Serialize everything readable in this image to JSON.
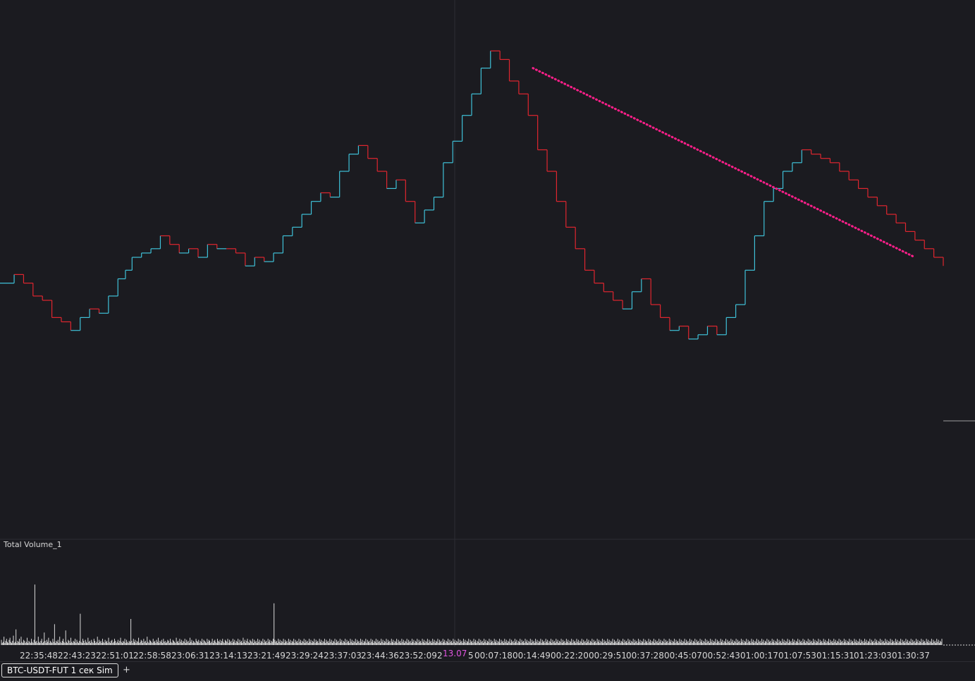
{
  "tabs": [
    {
      "label": "BTC-USDT-FUT 1 сек Sim"
    }
  ],
  "add_tab_label": "+",
  "cursor": {
    "label": "13.07"
  },
  "colors": {
    "background": "#1b1b20",
    "up": "#3fc1d8",
    "down": "#e0262f",
    "trendline": "#ff1f8a",
    "trendline_alt": "#29b6e6",
    "volume": "#d9d9d9",
    "cursor_label": "#e055e0"
  },
  "chart_data": [
    {
      "type": "line",
      "style": "step",
      "title": "",
      "x_tick_labels": [
        "22:35:48",
        "22:43:23",
        "22:51:01",
        "22:58:58",
        "23:06:31",
        "23:14:13",
        "23:21:49",
        "23:29:24",
        "23:37:03",
        "23:44:36",
        "23:52:09",
        "2",
        "5",
        "00:07:18",
        "00:14:49",
        "00:22:20",
        "00:29:51",
        "00:37:28",
        "00:45:07",
        "00:52:43",
        "01:00:17",
        "01:07:53",
        "01:15:31",
        "01:23:03",
        "01:30:37"
      ],
      "x_range": [
        0,
        100
      ],
      "y_range": [
        0,
        100
      ],
      "grid": false,
      "series": [
        {
          "x": [
            0,
            1.5,
            2.5,
            3.5,
            4.5,
            5.5,
            6.5,
            7.5,
            8.5,
            9.5,
            10.5,
            11.5,
            12.5,
            13.3,
            14,
            15,
            16,
            17,
            18,
            19,
            20,
            21,
            22,
            23,
            24,
            25,
            26,
            27,
            28,
            29,
            30,
            31,
            32,
            33,
            34,
            35,
            36,
            37,
            38,
            39,
            40,
            41,
            42,
            43,
            44,
            45,
            46,
            47,
            48,
            49,
            50,
            51,
            52,
            53,
            54,
            55,
            56,
            57,
            58,
            59,
            60,
            61,
            62,
            63,
            64,
            65,
            66,
            67,
            68,
            69,
            70,
            71,
            72,
            73,
            74,
            75,
            76,
            77,
            78,
            79,
            80,
            81,
            82,
            83,
            84,
            85,
            86,
            87,
            88,
            89,
            90,
            91,
            92,
            93,
            94,
            95,
            96,
            97,
            98,
            99,
            100
          ],
          "y": [
            44,
            46,
            44,
            41,
            40,
            36,
            35,
            33,
            36,
            38,
            37,
            41,
            45,
            47,
            50,
            51,
            52,
            55,
            53,
            51,
            52,
            50,
            53,
            52,
            52,
            51,
            48,
            50,
            49,
            51,
            55,
            57,
            60,
            63,
            65,
            64,
            70,
            74,
            76,
            73,
            70,
            66,
            68,
            63,
            58,
            61,
            64,
            72,
            77,
            83,
            88,
            94,
            98,
            96,
            91,
            88,
            83,
            75,
            70,
            63,
            57,
            52,
            47,
            44,
            42,
            40,
            38,
            42,
            45,
            39,
            36,
            33,
            34,
            31,
            32,
            34,
            32,
            36,
            39,
            47,
            55,
            63,
            66,
            70,
            72,
            75,
            74,
            73,
            72,
            70,
            68,
            66,
            64,
            62,
            60,
            58,
            56,
            54,
            52,
            50,
            48
          ],
          "markers": "none"
        }
      ],
      "annotations": [
        {
          "type": "dotted-trendline",
          "from": [
            56.5,
            94
          ],
          "to": [
            97,
            50
          ]
        }
      ]
    },
    {
      "type": "bar",
      "title": "Total Volume_1",
      "grid": false,
      "y_range": [
        0,
        100
      ],
      "values": [
        5,
        2,
        3,
        8,
        2,
        4,
        6,
        3,
        2,
        5,
        7,
        3,
        2,
        4,
        9,
        2,
        3,
        15,
        2,
        4,
        3,
        6,
        2,
        8,
        3,
        2,
        5,
        4,
        2,
        3,
        7,
        2,
        4,
        3,
        2,
        6,
        3,
        2,
        5,
        58,
        3,
        4,
        2,
        8,
        3,
        2,
        4,
        6,
        2,
        3,
        12,
        4,
        2,
        5,
        3,
        7,
        2,
        4,
        3,
        2,
        6,
        3,
        20,
        2,
        4,
        3,
        5,
        2,
        8,
        3,
        2,
        4,
        6,
        3,
        2,
        14,
        3,
        2,
        5,
        4,
        2,
        7,
        3,
        2,
        4,
        3,
        6,
        2,
        5,
        3,
        2,
        4,
        30,
        3,
        2,
        6,
        4,
        2,
        5,
        3,
        2,
        7,
        3,
        4,
        2,
        5,
        3,
        2,
        6,
        4,
        2,
        3,
        8,
        2,
        5,
        3,
        4,
        2,
        6,
        3,
        2,
        5,
        3,
        4,
        2,
        7,
        3,
        2,
        4,
        5,
        2,
        3,
        6,
        4,
        2,
        3,
        5,
        2,
        4,
        7,
        3,
        2,
        4,
        3,
        6,
        2,
        5,
        3,
        2,
        4,
        3,
        25,
        4,
        2,
        6,
        3,
        5,
        2,
        4,
        3,
        7,
        2,
        3,
        5,
        4,
        2,
        6,
        3,
        4,
        2,
        8,
        3,
        2,
        5,
        4,
        3,
        2,
        6,
        3,
        4,
        2,
        5,
        3,
        7,
        2,
        4,
        3,
        5,
        2,
        6,
        3,
        4,
        2,
        3,
        5,
        4,
        2,
        6,
        3,
        2,
        5,
        4,
        3,
        2,
        7,
        3,
        4,
        2,
        6,
        3,
        5,
        2,
        4,
        3,
        6,
        2,
        5,
        3,
        4,
        2,
        7,
        3,
        5,
        2,
        4,
        3,
        2,
        6,
        4,
        3,
        5,
        2,
        4,
        3,
        6,
        2,
        5,
        4,
        3,
        2,
        6,
        3,
        5,
        4,
        2,
        3,
        6,
        2,
        4,
        5,
        3,
        2,
        6,
        4,
        3,
        5,
        2,
        4,
        6,
        3,
        2,
        5,
        4,
        3,
        6,
        2,
        5,
        3,
        4,
        2,
        6,
        3,
        5,
        2,
        4,
        3,
        6,
        2,
        5,
        3,
        4,
        2,
        7,
        3,
        5,
        2,
        4,
        6,
        3,
        2,
        5,
        4,
        3,
        6,
        2,
        5,
        3,
        4,
        2,
        6,
        3,
        5,
        2,
        4,
        3,
        6,
        2,
        5,
        3,
        4,
        2,
        6,
        3,
        5,
        2,
        4,
        3,
        6,
        40,
        5,
        3,
        4,
        2,
        6,
        3,
        5,
        2,
        4,
        3,
        6,
        2,
        5,
        3,
        4,
        2,
        6,
        3,
        5,
        2,
        4,
        3,
        6,
        2,
        5,
        3,
        4,
        2,
        6,
        3,
        5,
        2,
        4,
        3,
        6,
        2,
        5,
        3,
        4,
        2,
        6,
        3,
        5,
        2,
        4,
        3,
        6,
        2,
        5,
        3,
        4,
        2,
        6,
        3,
        5,
        2,
        4,
        3,
        6,
        2,
        5,
        3,
        4,
        2,
        6,
        3,
        5,
        2,
        4,
        3,
        6,
        2,
        5,
        3,
        4,
        2,
        6,
        3,
        5,
        2,
        4,
        3,
        6,
        2,
        5,
        3,
        4,
        2,
        6,
        3,
        5,
        2,
        4,
        3,
        6,
        2,
        5,
        3,
        4,
        2,
        6,
        3,
        5,
        2,
        4,
        3,
        6,
        2,
        5,
        3,
        4,
        2,
        6,
        3,
        5,
        2,
        4,
        3,
        6,
        2,
        5,
        3,
        4,
        2,
        6,
        3,
        5,
        2,
        4,
        3,
        6,
        2,
        5,
        3,
        4,
        2,
        6,
        3,
        5,
        2,
        4,
        3,
        6,
        2,
        5,
        3,
        4,
        2,
        6,
        3,
        5,
        2,
        4,
        3,
        6,
        2,
        5,
        3,
        4,
        2,
        6,
        3,
        5,
        2,
        4,
        3,
        6,
        2,
        5,
        3,
        4,
        2,
        6,
        3,
        5,
        2,
        4,
        3,
        6,
        2,
        5,
        3,
        4,
        2,
        6,
        3,
        5,
        2,
        4,
        3,
        6,
        2,
        5,
        3,
        4,
        2,
        6,
        3,
        5,
        2,
        4,
        3,
        6,
        2,
        5,
        3,
        4,
        2,
        6,
        3,
        5,
        2,
        4,
        3,
        6,
        2,
        5,
        3,
        4,
        2,
        6,
        3,
        5,
        2,
        4,
        3,
        6,
        2,
        5,
        3,
        4,
        2,
        6,
        3,
        5,
        2,
        4,
        3,
        6,
        2,
        5,
        3,
        4,
        2,
        6,
        3,
        5,
        2,
        4,
        3,
        6,
        2,
        5,
        3,
        4,
        2,
        6,
        3,
        5,
        2,
        4,
        3,
        6,
        2,
        5,
        3,
        4,
        2,
        6,
        3,
        5,
        2,
        4,
        3,
        6,
        2,
        5,
        3,
        4,
        2,
        6,
        3,
        5,
        2,
        4,
        3,
        6,
        2,
        5,
        3,
        4,
        2,
        6,
        3,
        5,
        2,
        4,
        3,
        6,
        2,
        5,
        3,
        4,
        2,
        6,
        3,
        5,
        2,
        4,
        3,
        6,
        2,
        5,
        3,
        4,
        2,
        6,
        3,
        5,
        2,
        4,
        3,
        6,
        2,
        5,
        3,
        4,
        2,
        6,
        3,
        5,
        2,
        4,
        3,
        6,
        2,
        5,
        3,
        4,
        2,
        6,
        3,
        5,
        2,
        4,
        3,
        6,
        2,
        5,
        3,
        4,
        2,
        6,
        3,
        5,
        2,
        4,
        3,
        6,
        2,
        5,
        3,
        4,
        2,
        6,
        3,
        5,
        2,
        4,
        3,
        6,
        2,
        5,
        3,
        4,
        2,
        6,
        3,
        5,
        2,
        4,
        3,
        6,
        2,
        5,
        3,
        4,
        2,
        6,
        3,
        5,
        2,
        4,
        3,
        6,
        2,
        5,
        3,
        4,
        2,
        6,
        3,
        5,
        2,
        4,
        3,
        6,
        2,
        5,
        3,
        4,
        2,
        6,
        3,
        5,
        2,
        4,
        3,
        6,
        2,
        5,
        3,
        4,
        2,
        6,
        3,
        5,
        2,
        4,
        3,
        6,
        2,
        5,
        3,
        4,
        2,
        6,
        3,
        5,
        2,
        4,
        3,
        6,
        2,
        5,
        3,
        4,
        2,
        6,
        3,
        5,
        2,
        4,
        3,
        6,
        2,
        5,
        3,
        4,
        2,
        6,
        3,
        5,
        2,
        4,
        3,
        6,
        2,
        5,
        3,
        4,
        2,
        6,
        3,
        5,
        2,
        4,
        3,
        6,
        2,
        5,
        3,
        4,
        2,
        6,
        3,
        5,
        2,
        4,
        3,
        6,
        2,
        5,
        3,
        4,
        2,
        6,
        3,
        5,
        2,
        4,
        3,
        6,
        2,
        5,
        3,
        4,
        2,
        6,
        3,
        5,
        2,
        4,
        3,
        6,
        2,
        5,
        3,
        4,
        2,
        6,
        3,
        5,
        2,
        4,
        3,
        6,
        2,
        5,
        3,
        4,
        2,
        6,
        3,
        5,
        2,
        4,
        3,
        6,
        2,
        5,
        3,
        4,
        2,
        6,
        3,
        5,
        2,
        4,
        3,
        6,
        2,
        5,
        3,
        4,
        2,
        6,
        3,
        5,
        2,
        4,
        3,
        6,
        2,
        5,
        3,
        4,
        2,
        6,
        3,
        5,
        2,
        4,
        3,
        6,
        2,
        5,
        3,
        4,
        2,
        6,
        3,
        5,
        2,
        4,
        3,
        6,
        2,
        5,
        3,
        4,
        2,
        6,
        3,
        5,
        2,
        4,
        3,
        6,
        2,
        5,
        3,
        4,
        2,
        6,
        3,
        5,
        2,
        4,
        3,
        6,
        2,
        5,
        3,
        4,
        2,
        6,
        3,
        5,
        2,
        4,
        3,
        6,
        2,
        5,
        3,
        4,
        2,
        6,
        3,
        5,
        2,
        4,
        3,
        6,
        2,
        5,
        3,
        4,
        2,
        6,
        3,
        5,
        2,
        4,
        3,
        6,
        2,
        5,
        3,
        4,
        2,
        6,
        3,
        5,
        2,
        4,
        3,
        6,
        2,
        5,
        3,
        4,
        2,
        6,
        3,
        5,
        2,
        4,
        3,
        6,
        2,
        5,
        3,
        4,
        2,
        6,
        3,
        5,
        2,
        4,
        3,
        6,
        2,
        5,
        3,
        4,
        2,
        6,
        3,
        5,
        2,
        4,
        3,
        6,
        2,
        5,
        3,
        4,
        2,
        6,
        3,
        5,
        2,
        4,
        3,
        6,
        2,
        5,
        3,
        4,
        2,
        6,
        3,
        5,
        2,
        4,
        3,
        6,
        2,
        5,
        3,
        4,
        2,
        6,
        3,
        5,
        2,
        4,
        3,
        6,
        2,
        5,
        3,
        4,
        2,
        6,
        3,
        5,
        2,
        4,
        3,
        6,
        2,
        5,
        3,
        4,
        2,
        6,
        3,
        5,
        2,
        4,
        3,
        6,
        2,
        5,
        3,
        4,
        2,
        6,
        3,
        5,
        2,
        4,
        3,
        6,
        2,
        5,
        3,
        4,
        2,
        6,
        3,
        5,
        2,
        4,
        3,
        6
      ]
    }
  ]
}
